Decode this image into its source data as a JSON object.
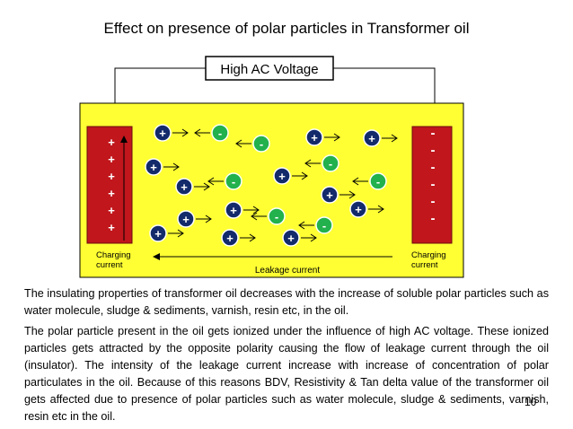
{
  "slide": {
    "title": "Effect on presence of polar particles in Transformer oil",
    "page_number": "10"
  },
  "diagram": {
    "source_label": "High AC Voltage",
    "left_electrode": {
      "signs": [
        "+",
        "+",
        "+",
        "+",
        "+",
        "+"
      ],
      "label_line1": "Charging",
      "label_line2": "current"
    },
    "right_electrode": {
      "signs": [
        "-",
        "-",
        "-",
        "-",
        "-",
        "-"
      ],
      "label_line1": "Charging",
      "label_line2": "current"
    },
    "leakage_label": "Leakage  current",
    "particles": [
      {
        "sign": "+",
        "polarity": "positive",
        "arrow": "right"
      },
      {
        "sign": "-",
        "polarity": "negative",
        "arrow": "left"
      },
      {
        "sign": "-",
        "polarity": "negative",
        "arrow": "left"
      },
      {
        "sign": "+",
        "polarity": "positive",
        "arrow": "right"
      },
      {
        "sign": "+",
        "polarity": "positive",
        "arrow": "right"
      },
      {
        "sign": "+",
        "polarity": "positive",
        "arrow": "right"
      },
      {
        "sign": "-",
        "polarity": "negative",
        "arrow": "left"
      },
      {
        "sign": "+",
        "polarity": "positive",
        "arrow": "right"
      },
      {
        "sign": "-",
        "polarity": "negative",
        "arrow": "left"
      },
      {
        "sign": "+",
        "polarity": "positive",
        "arrow": "right"
      },
      {
        "sign": "-",
        "polarity": "negative",
        "arrow": "left"
      },
      {
        "sign": "+",
        "polarity": "positive",
        "arrow": "right"
      },
      {
        "sign": "+",
        "polarity": "positive",
        "arrow": "right"
      },
      {
        "sign": "-",
        "polarity": "negative",
        "arrow": "left"
      },
      {
        "sign": "+",
        "polarity": "positive",
        "arrow": "right"
      },
      {
        "sign": "+",
        "polarity": "positive",
        "arrow": "right"
      },
      {
        "sign": "-",
        "polarity": "negative",
        "arrow": "left"
      },
      {
        "sign": "+",
        "polarity": "positive",
        "arrow": "right"
      },
      {
        "sign": "+",
        "polarity": "positive",
        "arrow": "right"
      },
      {
        "sign": "+",
        "polarity": "positive",
        "arrow": "right"
      }
    ],
    "colors": {
      "oil": "#ffff33",
      "electrode": "#c0161c",
      "positive_particle": "#132a6b",
      "negative_particle": "#22b14c"
    }
  },
  "text": {
    "paragraph1": "The insulating properties of transformer oil decreases with the increase of soluble polar particles such as water molecule, sludge & sediments, varnish, resin etc, in the oil.",
    "paragraph2": "The polar particle present in the oil  gets ionized under the influence of high AC voltage. These ionized particles gets attracted by the opposite polarity causing the flow of leakage current through the oil (insulator). The intensity of the leakage current increase with increase of concentration of polar particulates in the oil. Because of this reasons BDV, Resistivity &  Tan delta value of the transformer oil gets affected due to presence of polar particles such as water molecule, sludge & sediments, varnish, resin etc in the oil."
  }
}
